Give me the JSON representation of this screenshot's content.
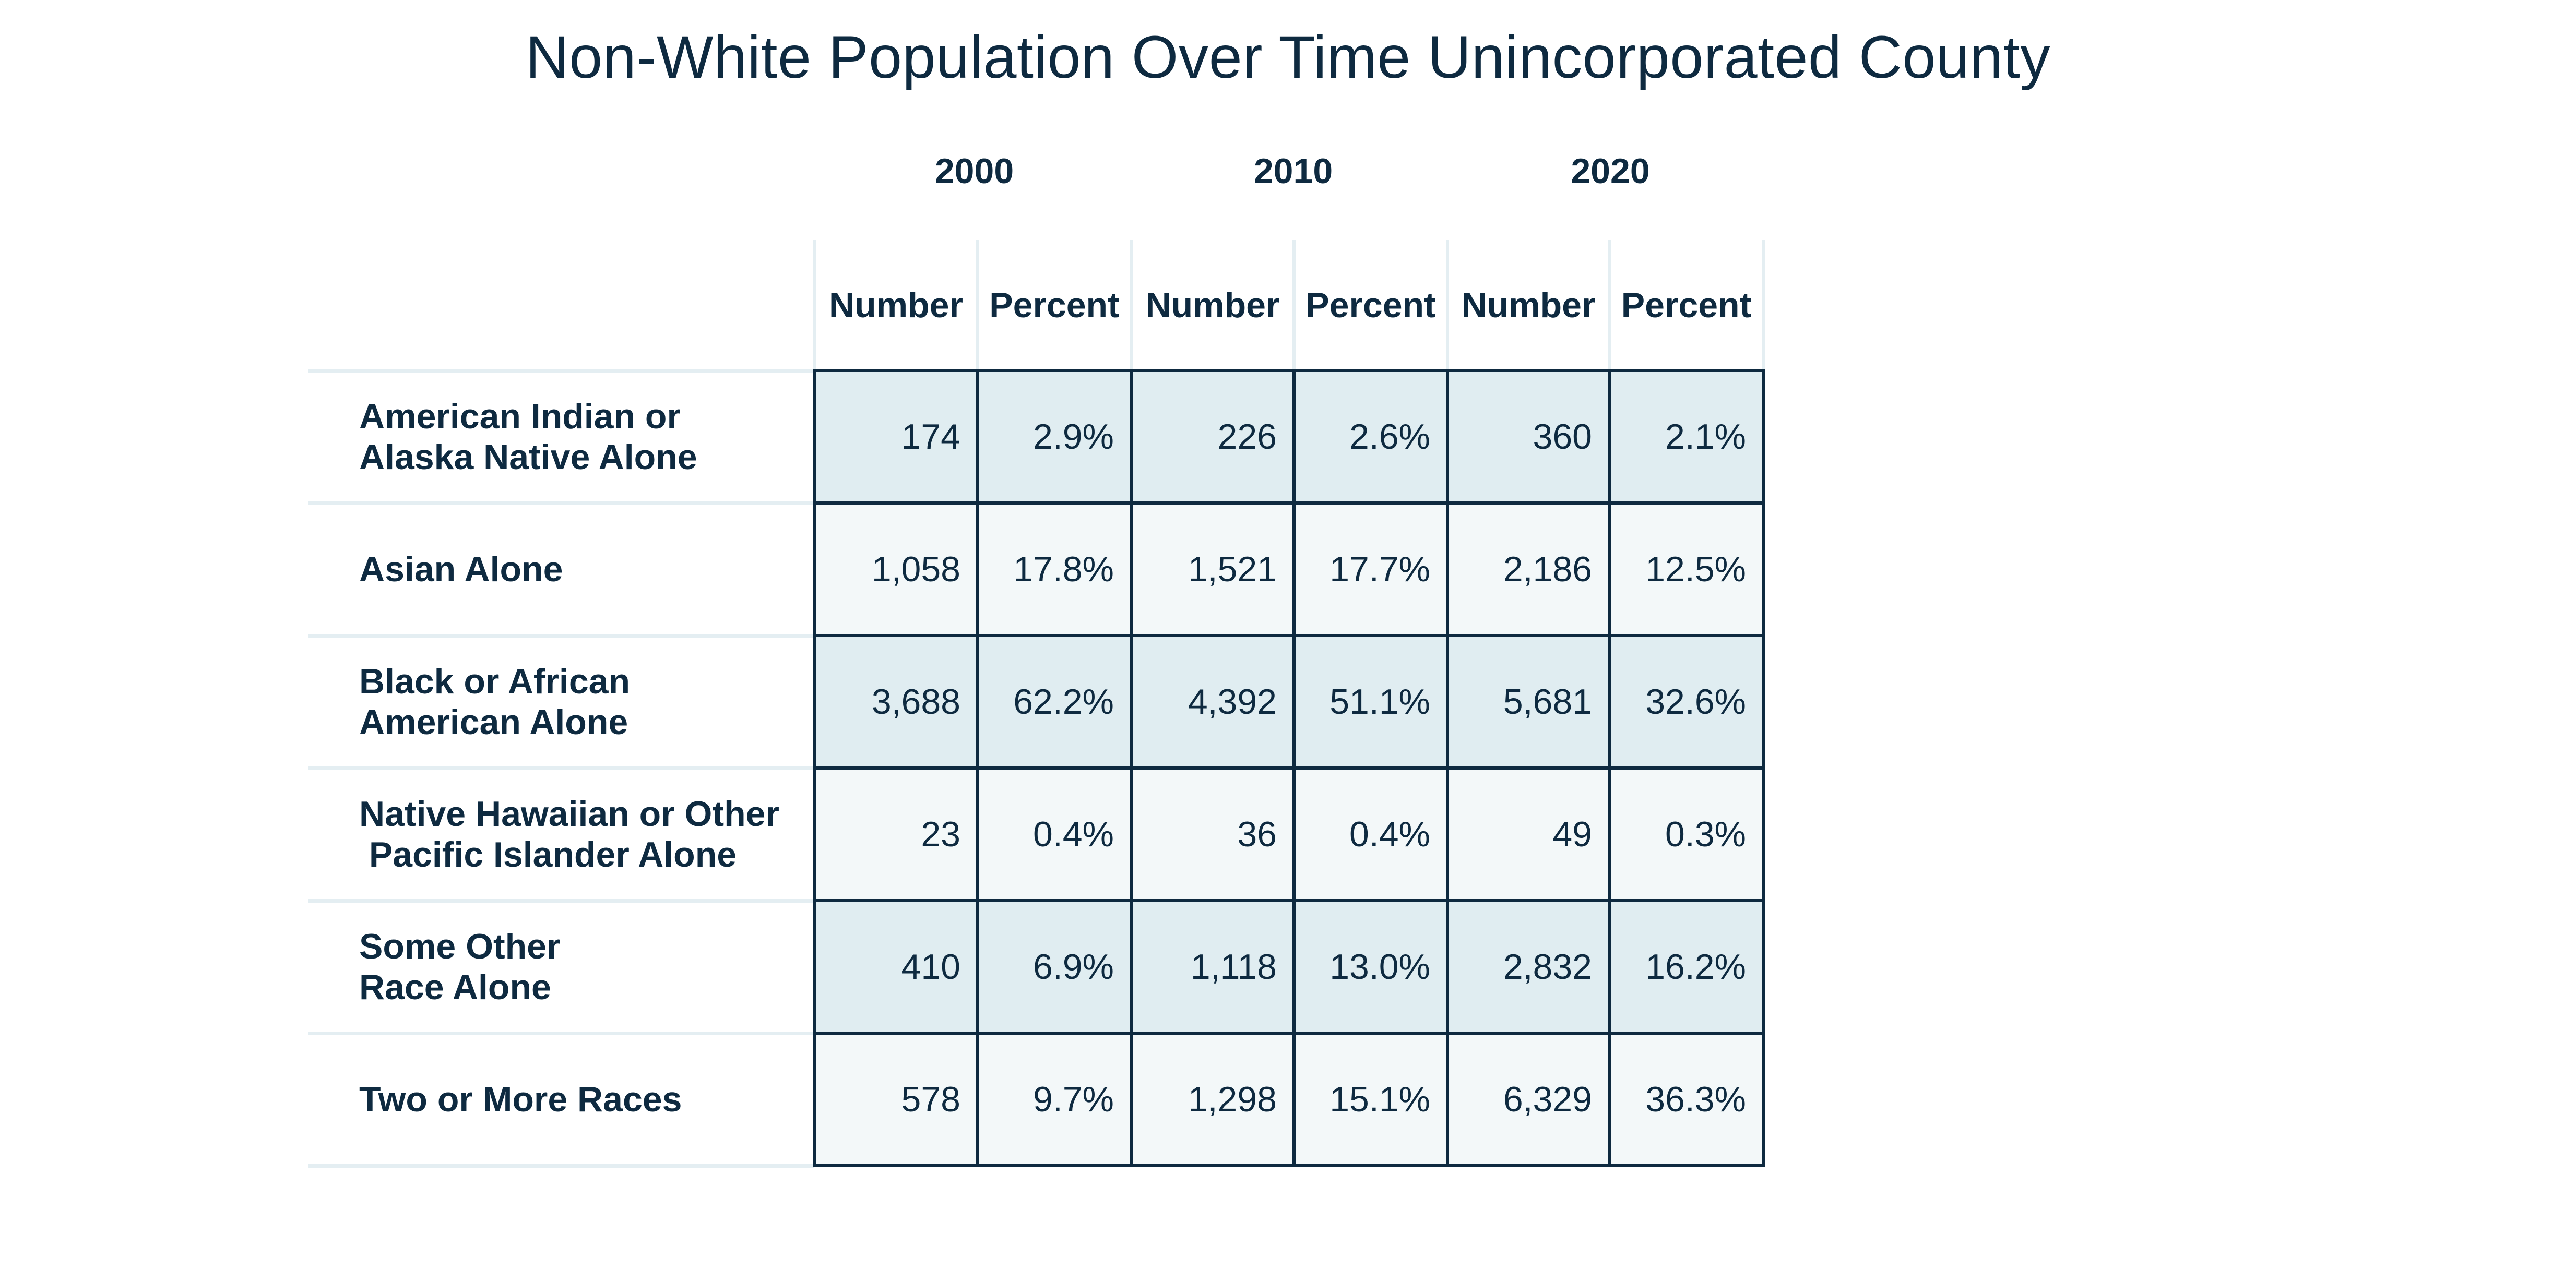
{
  "title": "Non-White Population Over Time Unincorporated County",
  "years": [
    "2000",
    "2010",
    "2020"
  ],
  "column_headers": [
    "Number",
    "Percent",
    "Number",
    "Percent",
    "Number",
    "Percent"
  ],
  "rows": [
    {
      "label": "American Indian or\nAlaska Native Alone",
      "values": [
        "174",
        "2.9%",
        "226",
        "2.6%",
        "360",
        "2.1%"
      ]
    },
    {
      "label": "Asian Alone",
      "values": [
        "1,058",
        "17.8%",
        "1,521",
        "17.7%",
        "2,186",
        "12.5%"
      ]
    },
    {
      "label": "Black or African\nAmerican Alone",
      "values": [
        "3,688",
        "62.2%",
        "4,392",
        "51.1%",
        "5,681",
        "32.6%"
      ]
    },
    {
      "label": "Native Hawaiian or Other\n Pacific Islander Alone",
      "values": [
        "23",
        "0.4%",
        "36",
        "0.4%",
        "49",
        "0.3%"
      ]
    },
    {
      "label": "Some Other\nRace Alone",
      "values": [
        "410",
        "6.9%",
        "1,118",
        "13.0%",
        "2,832",
        "16.2%"
      ]
    },
    {
      "label": "Two or More Races",
      "values": [
        "578",
        "9.7%",
        "1,298",
        "15.1%",
        "6,329",
        "36.3%"
      ]
    }
  ],
  "colors": {
    "text": "#0e2a40",
    "band_dark": "#e0edf1",
    "band_light": "#f3f8f9",
    "grid_light": "#e4eef2"
  }
}
